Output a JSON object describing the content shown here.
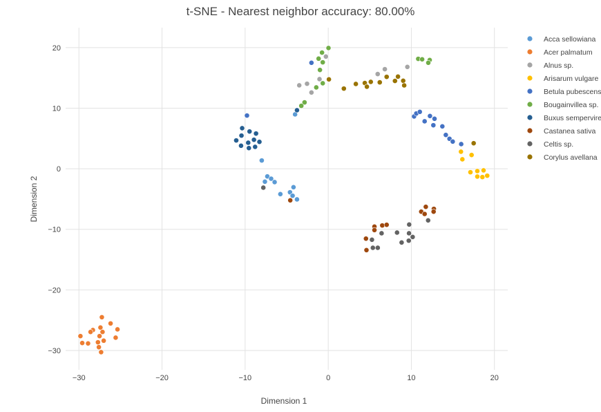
{
  "chart_data": {
    "type": "scatter",
    "title": "t-SNE - Nearest neighbor accuracy: 80.00%",
    "xlabel": "Dimension 1",
    "ylabel": "Dimension 2",
    "xlim": [
      -31.6,
      21.6
    ],
    "ylim": [
      -33.2,
      23.3
    ],
    "xticks": [
      -30,
      -20,
      -10,
      0,
      10,
      20
    ],
    "yticks": [
      -30,
      -20,
      -10,
      0,
      10,
      20
    ],
    "grid": true,
    "legend_position": "right",
    "series": [
      {
        "name": "Acca sellowiana",
        "color": "#5b9bd5",
        "points": [
          [
            -3.99,
            8.98
          ],
          [
            -8.0,
            1.37
          ],
          [
            -7.33,
            -1.26
          ],
          [
            -6.87,
            -1.64
          ],
          [
            -7.62,
            -2.13
          ],
          [
            -6.45,
            -2.2
          ],
          [
            -5.76,
            -4.19
          ],
          [
            -4.18,
            -3.05
          ],
          [
            -4.6,
            -3.88
          ],
          [
            -4.29,
            -4.45
          ],
          [
            -3.76,
            -5.06
          ]
        ]
      },
      {
        "name": "Acer palmatum",
        "color": "#ed7d31",
        "points": [
          [
            -27.24,
            -24.51
          ],
          [
            -26.19,
            -25.54
          ],
          [
            -27.41,
            -26.22
          ],
          [
            -28.32,
            -26.63
          ],
          [
            -28.6,
            -26.94
          ],
          [
            -27.16,
            -26.94
          ],
          [
            -25.36,
            -26.52
          ],
          [
            -27.52,
            -27.63
          ],
          [
            -29.82,
            -27.63
          ],
          [
            -25.58,
            -27.89
          ],
          [
            -29.6,
            -28.77
          ],
          [
            -28.9,
            -28.84
          ],
          [
            -27.71,
            -28.65
          ],
          [
            -27.02,
            -28.39
          ],
          [
            -27.6,
            -29.45
          ],
          [
            -27.33,
            -30.28
          ]
        ]
      },
      {
        "name": "Alnus sp.",
        "color": "#a5a5a5",
        "points": [
          [
            -0.28,
            18.53
          ],
          [
            -3.49,
            13.78
          ],
          [
            -2.55,
            14.04
          ],
          [
            -2.02,
            12.59
          ],
          [
            -1.05,
            14.8
          ],
          [
            5.95,
            15.64
          ],
          [
            6.81,
            16.44
          ],
          [
            9.52,
            16.82
          ]
        ]
      },
      {
        "name": "Arisarum vulgare",
        "color": "#ffc000",
        "points": [
          [
            15.97,
            2.82
          ],
          [
            17.25,
            2.28
          ],
          [
            16.14,
            1.56
          ],
          [
            17.11,
            -0.57
          ],
          [
            17.94,
            -0.38
          ],
          [
            18.69,
            -0.26
          ],
          [
            17.94,
            -1.29
          ],
          [
            18.55,
            -1.37
          ],
          [
            19.13,
            -1.14
          ]
        ]
      },
      {
        "name": "Betula pubescens",
        "color": "#4472c4",
        "points": [
          [
            -9.78,
            8.79
          ],
          [
            -2.02,
            17.5
          ],
          [
            10.33,
            8.64
          ],
          [
            10.6,
            9.13
          ],
          [
            11.02,
            9.4
          ],
          [
            11.6,
            7.84
          ],
          [
            12.24,
            8.71
          ],
          [
            12.79,
            8.25
          ],
          [
            12.65,
            7.19
          ],
          [
            13.73,
            7.0
          ],
          [
            14.15,
            5.59
          ],
          [
            14.59,
            4.95
          ],
          [
            14.98,
            4.49
          ],
          [
            16.0,
            4.07
          ]
        ]
      },
      {
        "name": "Bougainvillea sp.",
        "color": "#70ad47",
        "points": [
          [
            0.03,
            19.94
          ],
          [
            -0.75,
            19.18
          ],
          [
            -1.16,
            18.18
          ],
          [
            -0.66,
            17.58
          ],
          [
            -1.0,
            16.32
          ],
          [
            -0.66,
            14.12
          ],
          [
            -1.44,
            13.43
          ],
          [
            -2.85,
            10.96
          ],
          [
            -3.24,
            10.39
          ],
          [
            10.83,
            18.15
          ],
          [
            11.3,
            18.07
          ],
          [
            12.21,
            17.96
          ],
          [
            12.04,
            17.5
          ]
        ]
      },
      {
        "name": "Buxus sempervirens",
        "color": "#255e91",
        "points": [
          [
            -10.36,
            6.7
          ],
          [
            -9.47,
            6.16
          ],
          [
            -8.69,
            5.82
          ],
          [
            -10.44,
            5.48
          ],
          [
            -11.07,
            4.68
          ],
          [
            -9.63,
            4.3
          ],
          [
            -8.94,
            4.79
          ],
          [
            -8.28,
            4.45
          ],
          [
            -10.49,
            3.8
          ],
          [
            -9.55,
            3.42
          ],
          [
            -8.8,
            3.62
          ],
          [
            -3.76,
            9.67
          ]
        ]
      },
      {
        "name": "Castanea sativa",
        "color": "#9e480e",
        "points": [
          [
            -4.57,
            -5.21
          ],
          [
            11.74,
            -6.28
          ],
          [
            11.19,
            -7.08
          ],
          [
            11.6,
            -7.46
          ],
          [
            12.71,
            -6.62
          ],
          [
            12.68,
            -7.08
          ],
          [
            5.56,
            -9.55
          ],
          [
            5.56,
            -10.12
          ],
          [
            6.5,
            -9.36
          ],
          [
            7.03,
            -9.25
          ],
          [
            4.54,
            -11.53
          ],
          [
            4.6,
            -13.43
          ]
        ]
      },
      {
        "name": "Celtis sp.",
        "color": "#636363",
        "points": [
          [
            -7.81,
            -3.12
          ],
          [
            12.02,
            -8.52
          ],
          [
            9.74,
            -9.21
          ],
          [
            6.42,
            -10.65
          ],
          [
            8.28,
            -10.54
          ],
          [
            9.72,
            -10.65
          ],
          [
            5.26,
            -11.72
          ],
          [
            10.16,
            -11.26
          ],
          [
            9.69,
            -11.87
          ],
          [
            8.83,
            -12.18
          ],
          [
            5.37,
            -13.05
          ],
          [
            5.96,
            -13.05
          ]
        ]
      },
      {
        "name": "Corylus avellana",
        "color": "#997300",
        "points": [
          [
            0.08,
            14.76
          ],
          [
            1.88,
            13.24
          ],
          [
            3.32,
            14.0
          ],
          [
            4.4,
            14.16
          ],
          [
            4.65,
            13.55
          ],
          [
            5.12,
            14.35
          ],
          [
            6.2,
            14.27
          ],
          [
            7.03,
            15.18
          ],
          [
            8.03,
            14.5
          ],
          [
            8.39,
            15.22
          ],
          [
            9.02,
            14.53
          ],
          [
            9.14,
            13.77
          ],
          [
            17.5,
            4.22
          ]
        ]
      }
    ]
  }
}
